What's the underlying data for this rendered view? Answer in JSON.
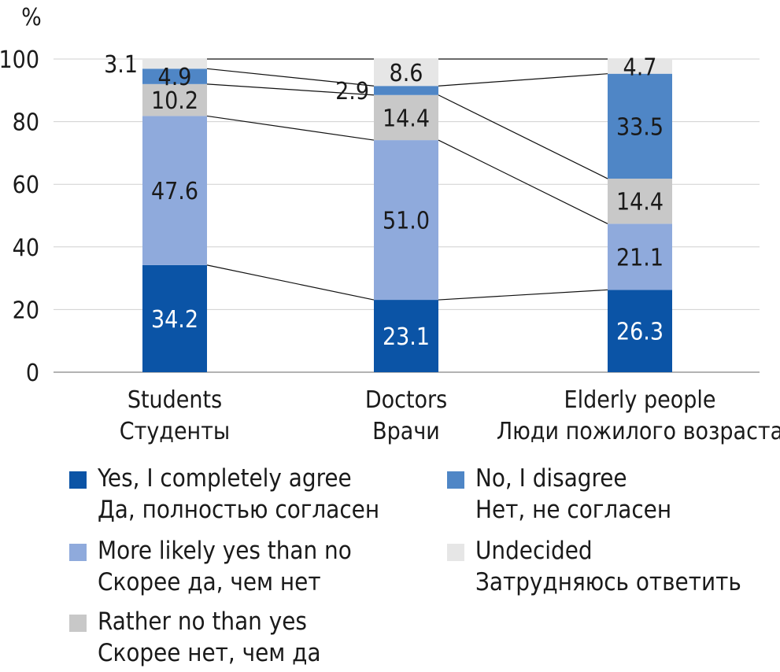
{
  "chart_data": {
    "type": "bar",
    "stacked": true,
    "ylabel": "%",
    "ylim": [
      0,
      100
    ],
    "yticks": [
      0,
      20,
      40,
      60,
      80,
      100
    ],
    "grid": true,
    "connector_lines": true,
    "legend_position": "bottom",
    "categories": [
      [
        "Students",
        "Студенты"
      ],
      [
        "Doctors",
        "Врачи"
      ],
      [
        "Elderly people",
        "Люди пожилого возраста"
      ]
    ],
    "series": [
      {
        "name": [
          "Yes, I completely agree",
          "Да, полностью согласен"
        ],
        "color": "#0b54a6",
        "label_color": "#ffffff",
        "values": [
          34.2,
          23.1,
          26.3
        ]
      },
      {
        "name": [
          "More likely yes than no",
          "Скорее да, чем нет"
        ],
        "color": "#8faadc",
        "label_color": "#1a1a1a",
        "values": [
          47.6,
          51.0,
          21.1
        ]
      },
      {
        "name": [
          "Rather no than yes",
          "Скорее нет, чем да"
        ],
        "color": "#c8c8c8",
        "label_color": "#1a1a1a",
        "values": [
          10.2,
          14.4,
          14.4
        ]
      },
      {
        "name": [
          "No, I disagree",
          "Нет, не согласен"
        ],
        "color": "#4f86c6",
        "label_color": "#1a1a1a",
        "values": [
          4.9,
          2.9,
          33.5
        ]
      },
      {
        "name": [
          "Undecided",
          "Затрудняюсь ответить"
        ],
        "color": "#e6e6e6",
        "label_color": "#1a1a1a",
        "values": [
          3.1,
          8.6,
          4.7
        ]
      }
    ]
  }
}
